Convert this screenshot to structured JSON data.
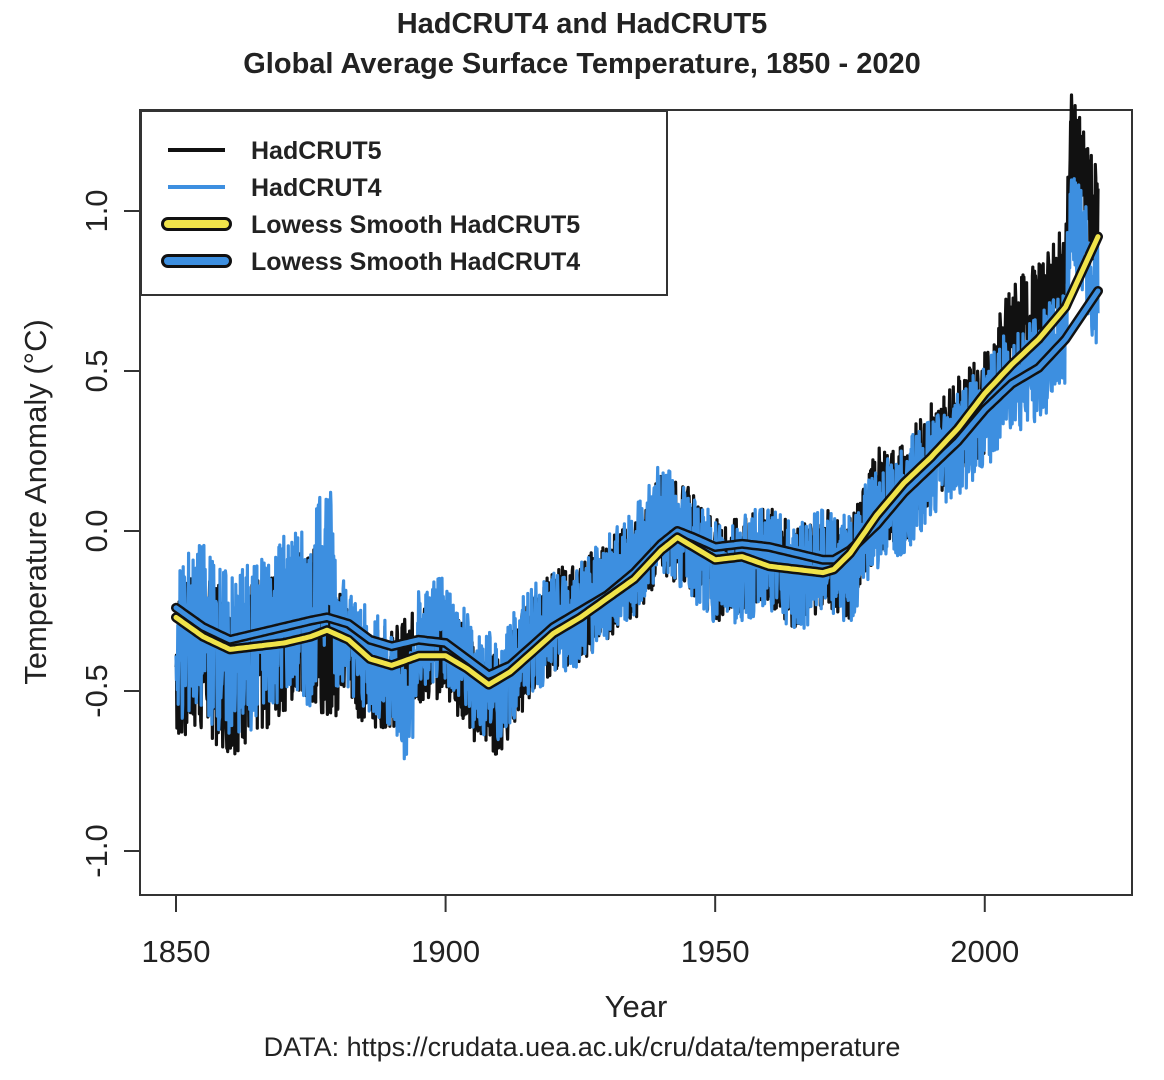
{
  "chart_data": {
    "type": "line",
    "title": "HadCRUT4 and HadCRUT5",
    "subtitle": "Global Average Surface Temperature, 1850 - 2020",
    "xlabel": "Year",
    "ylabel": "Temperature Anomaly (°C)",
    "xlim": [
      1850,
      2021
    ],
    "ylim": [
      -1.1,
      1.3
    ],
    "xticks": [
      1850,
      1900,
      1950,
      2000
    ],
    "yticks": [
      -1.0,
      -0.5,
      0.0,
      0.5,
      1.0
    ],
    "ytick_labels": [
      "-1.0",
      "-0.5",
      "0.0",
      "0.5",
      "1.0"
    ],
    "legend_position": "top-left",
    "grid": false,
    "series": [
      {
        "name": "HadCRUT5",
        "color": "#111111",
        "style": "thin",
        "x": [
          1850,
          1855,
          1860,
          1865,
          1870,
          1875,
          1880,
          1885,
          1890,
          1895,
          1900,
          1905,
          1910,
          1915,
          1920,
          1925,
          1930,
          1935,
          1940,
          1945,
          1950,
          1955,
          1960,
          1965,
          1970,
          1975,
          1980,
          1985,
          1990,
          1995,
          2000,
          2005,
          2010,
          2015,
          2016,
          2020
        ],
        "y": [
          -0.42,
          -0.38,
          -0.45,
          -0.4,
          -0.32,
          -0.3,
          -0.33,
          -0.45,
          -0.46,
          -0.4,
          -0.35,
          -0.5,
          -0.55,
          -0.38,
          -0.28,
          -0.25,
          -0.18,
          -0.12,
          0.02,
          -0.02,
          -0.12,
          -0.12,
          -0.08,
          -0.15,
          -0.08,
          -0.12,
          0.1,
          0.12,
          0.25,
          0.32,
          0.4,
          0.62,
          0.68,
          0.8,
          1.22,
          1.0
        ]
      },
      {
        "name": "HadCRUT4",
        "color": "#3d8fe0",
        "style": "thin",
        "x": [
          1850,
          1855,
          1860,
          1865,
          1870,
          1875,
          1878,
          1880,
          1885,
          1890,
          1893,
          1895,
          1900,
          1905,
          1910,
          1915,
          1920,
          1925,
          1930,
          1935,
          1940,
          1945,
          1950,
          1955,
          1960,
          1965,
          1970,
          1975,
          1980,
          1985,
          1990,
          1995,
          2000,
          2005,
          2010,
          2015,
          2016,
          2020
        ],
        "y": [
          -0.35,
          -0.3,
          -0.4,
          -0.35,
          -0.25,
          -0.28,
          -0.05,
          -0.28,
          -0.4,
          -0.45,
          -0.6,
          -0.35,
          -0.3,
          -0.45,
          -0.5,
          -0.35,
          -0.3,
          -0.25,
          -0.18,
          -0.1,
          0.05,
          -0.05,
          -0.12,
          -0.12,
          -0.08,
          -0.15,
          -0.1,
          -0.12,
          0.05,
          0.1,
          0.2,
          0.28,
          0.35,
          0.48,
          0.5,
          0.62,
          1.05,
          0.75
        ]
      },
      {
        "name": "Lowess Smooth HadCRUT5",
        "color": "#f0e34a",
        "style": "smooth",
        "x": [
          1850,
          1855,
          1860,
          1865,
          1870,
          1875,
          1878,
          1882,
          1886,
          1890,
          1895,
          1900,
          1904,
          1908,
          1912,
          1916,
          1920,
          1925,
          1930,
          1935,
          1940,
          1943,
          1946,
          1950,
          1955,
          1960,
          1965,
          1970,
          1972,
          1975,
          1980,
          1985,
          1990,
          1995,
          2000,
          2005,
          2010,
          2015,
          2021
        ],
        "y": [
          -0.27,
          -0.33,
          -0.37,
          -0.36,
          -0.35,
          -0.33,
          -0.31,
          -0.34,
          -0.4,
          -0.42,
          -0.39,
          -0.39,
          -0.43,
          -0.48,
          -0.44,
          -0.38,
          -0.32,
          -0.27,
          -0.21,
          -0.15,
          -0.06,
          -0.02,
          -0.05,
          -0.09,
          -0.08,
          -0.11,
          -0.12,
          -0.13,
          -0.12,
          -0.07,
          0.05,
          0.15,
          0.23,
          0.32,
          0.43,
          0.52,
          0.6,
          0.7,
          0.92
        ]
      },
      {
        "name": "Lowess Smooth HadCRUT4",
        "color": "#3d8fe0",
        "style": "smooth",
        "x": [
          1850,
          1855,
          1860,
          1865,
          1870,
          1875,
          1878,
          1882,
          1886,
          1890,
          1895,
          1900,
          1904,
          1908,
          1912,
          1916,
          1920,
          1925,
          1930,
          1935,
          1940,
          1943,
          1946,
          1950,
          1955,
          1960,
          1965,
          1970,
          1972,
          1975,
          1980,
          1985,
          1990,
          1995,
          2000,
          2005,
          2010,
          2015,
          2021
        ],
        "y": [
          -0.24,
          -0.3,
          -0.34,
          -0.32,
          -0.3,
          -0.28,
          -0.27,
          -0.29,
          -0.34,
          -0.36,
          -0.34,
          -0.35,
          -0.4,
          -0.45,
          -0.42,
          -0.36,
          -0.3,
          -0.25,
          -0.2,
          -0.13,
          -0.04,
          0.0,
          -0.02,
          -0.05,
          -0.04,
          -0.05,
          -0.07,
          -0.09,
          -0.09,
          -0.06,
          0.02,
          0.12,
          0.2,
          0.28,
          0.38,
          0.46,
          0.51,
          0.6,
          0.75
        ]
      }
    ]
  },
  "footer": "DATA: https://crudata.uea.ac.uk/cru/data/temperature"
}
